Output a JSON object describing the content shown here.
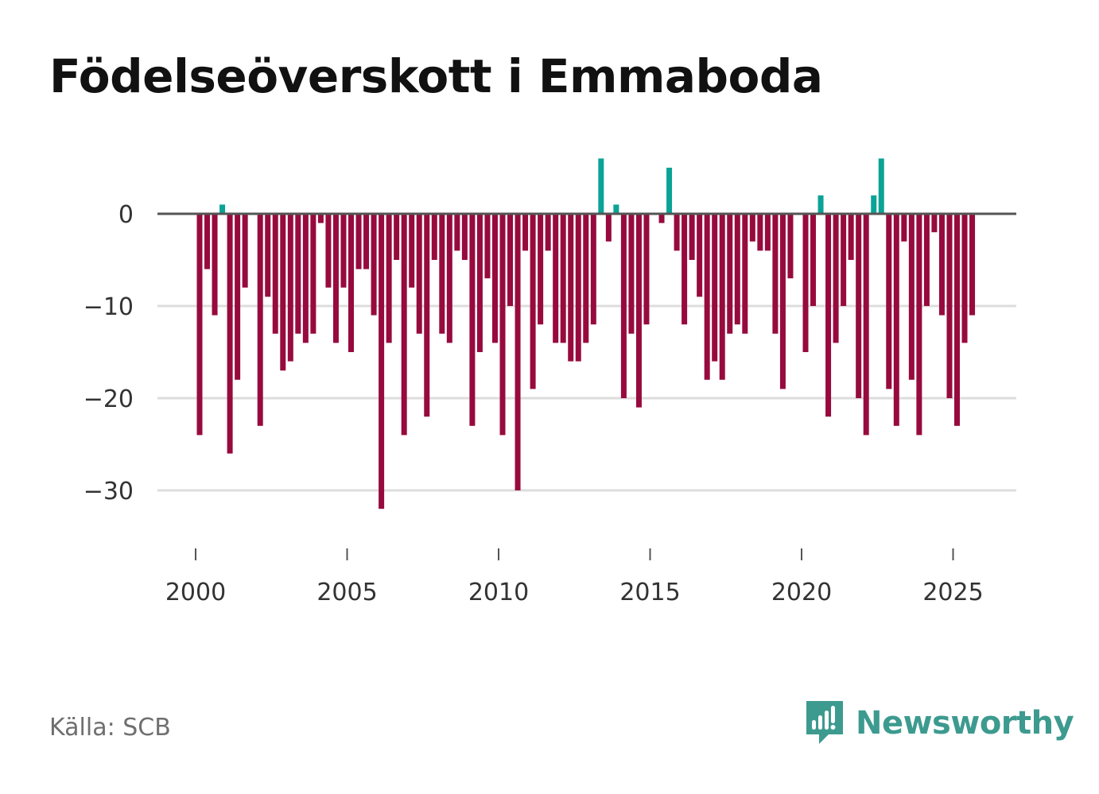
{
  "title": "Födelseöverskott i Emmaboda",
  "source": "Källa: SCB",
  "brand": {
    "name": "Newsworthy",
    "icon": "newsworthy-logo-icon"
  },
  "colors": {
    "positive": "#0aa396",
    "negative": "#970a3e",
    "zero_line": "#555555",
    "grid": "#dddddd",
    "axis_text": "#333333",
    "brand": "#3d9a8f"
  },
  "chart_data": {
    "type": "bar",
    "title": "Födelseöverskott i Emmaboda",
    "xlabel": "",
    "ylabel": "",
    "frequency": "quarterly",
    "start": 2000.0,
    "x_ticks": [
      "2000",
      "2005",
      "2010",
      "2015",
      "2020",
      "2025"
    ],
    "x_tick_values": [
      2000,
      2005,
      2010,
      2015,
      2020,
      2025
    ],
    "y_ticks": [
      "0",
      "−10",
      "−20",
      "−30"
    ],
    "y_tick_values": [
      0,
      -10,
      -20,
      -30
    ],
    "ylim": [
      -36,
      6
    ],
    "xlim": [
      1999.25,
      2027.1
    ],
    "values": [
      -24,
      -6,
      -11,
      1,
      -26,
      -18,
      -8,
      0,
      -23,
      -9,
      -13,
      -17,
      -16,
      -13,
      -14,
      -13,
      -1,
      -8,
      -14,
      -8,
      -15,
      -6,
      -6,
      -11,
      -32,
      -14,
      -5,
      -24,
      -8,
      -13,
      -22,
      -5,
      -13,
      -14,
      -4,
      -5,
      -23,
      -15,
      -7,
      -14,
      -24,
      -10,
      -30,
      -4,
      -19,
      -12,
      -4,
      -14,
      -14,
      -16,
      -16,
      -14,
      -12,
      6,
      -3,
      1,
      -20,
      -13,
      -21,
      -12,
      0,
      -1,
      5,
      -4,
      -12,
      -5,
      -9,
      -18,
      -16,
      -18,
      -13,
      -12,
      -13,
      -3,
      -4,
      -4,
      -13,
      -19,
      -7,
      0,
      -15,
      -10,
      2,
      -22,
      -14,
      -10,
      -5,
      -20,
      -24,
      2,
      6,
      -19,
      -23,
      -3,
      -18,
      -24,
      -10,
      -2,
      -11,
      -20,
      -23,
      -14,
      -11
    ]
  }
}
